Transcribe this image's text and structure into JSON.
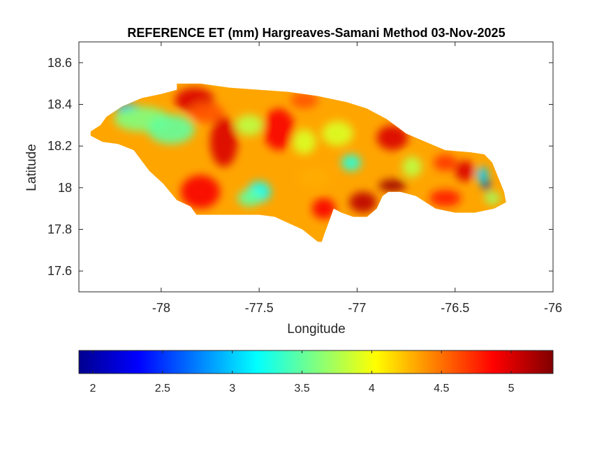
{
  "chart_data": {
    "type": "heatmap",
    "title": "REFERENCE ET (mm) Hargreaves-Samani Method  03-Nov-2025",
    "xlabel": "Longitude",
    "ylabel": "Latitude",
    "xlim": [
      -78.42,
      -76
    ],
    "ylim": [
      17.5,
      18.7
    ],
    "x_ticks": [
      {
        "value": -78,
        "label": "-78"
      },
      {
        "value": -77.5,
        "label": "-77.5"
      },
      {
        "value": -77,
        "label": "-77"
      },
      {
        "value": -76.5,
        "label": "-76.5"
      },
      {
        "value": -76,
        "label": "-76"
      }
    ],
    "y_ticks": [
      {
        "value": 17.6,
        "label": "17.6"
      },
      {
        "value": 17.8,
        "label": "17.8"
      },
      {
        "value": 18,
        "label": "18"
      },
      {
        "value": 18.2,
        "label": "18.2"
      },
      {
        "value": 18.4,
        "label": "18.4"
      },
      {
        "value": 18.6,
        "label": "18.6"
      }
    ],
    "colorbar": {
      "colormap": "jet",
      "range": [
        1.9,
        5.3
      ],
      "ticks": [
        {
          "value": 2,
          "label": "2"
        },
        {
          "value": 2.5,
          "label": "2.5"
        },
        {
          "value": 3,
          "label": "3"
        },
        {
          "value": 3.5,
          "label": "3.5"
        },
        {
          "value": 4,
          "label": "4"
        },
        {
          "value": 4.5,
          "label": "4.5"
        },
        {
          "value": 5,
          "label": "5"
        }
      ]
    },
    "region_outline": [
      [
        -78.36,
        18.27
      ],
      [
        -78.31,
        18.3
      ],
      [
        -78.28,
        18.34
      ],
      [
        -78.2,
        18.39
      ],
      [
        -78.1,
        18.43
      ],
      [
        -78.0,
        18.45
      ],
      [
        -77.92,
        18.47
      ],
      [
        -77.92,
        18.5
      ],
      [
        -77.8,
        18.5
      ],
      [
        -77.65,
        18.48
      ],
      [
        -77.5,
        18.47
      ],
      [
        -77.35,
        18.46
      ],
      [
        -77.2,
        18.44
      ],
      [
        -77.05,
        18.41
      ],
      [
        -76.95,
        18.38
      ],
      [
        -76.85,
        18.33
      ],
      [
        -76.75,
        18.26
      ],
      [
        -76.65,
        18.22
      ],
      [
        -76.55,
        18.18
      ],
      [
        -76.42,
        18.17
      ],
      [
        -76.35,
        18.16
      ],
      [
        -76.31,
        18.12
      ],
      [
        -76.28,
        18.05
      ],
      [
        -76.25,
        17.98
      ],
      [
        -76.24,
        17.93
      ],
      [
        -76.3,
        17.9
      ],
      [
        -76.4,
        17.88
      ],
      [
        -76.5,
        17.88
      ],
      [
        -76.6,
        17.9
      ],
      [
        -76.7,
        17.96
      ],
      [
        -76.78,
        17.98
      ],
      [
        -76.84,
        17.98
      ],
      [
        -76.87,
        17.96
      ],
      [
        -76.9,
        17.9
      ],
      [
        -76.95,
        17.86
      ],
      [
        -77.02,
        17.86
      ],
      [
        -77.08,
        17.88
      ],
      [
        -77.12,
        17.9
      ],
      [
        -77.15,
        17.82
      ],
      [
        -77.17,
        17.77
      ],
      [
        -77.18,
        17.74
      ],
      [
        -77.2,
        17.74
      ],
      [
        -77.24,
        17.77
      ],
      [
        -77.28,
        17.8
      ],
      [
        -77.35,
        17.83
      ],
      [
        -77.42,
        17.86
      ],
      [
        -77.5,
        17.87
      ],
      [
        -77.62,
        17.87
      ],
      [
        -77.75,
        17.87
      ],
      [
        -77.82,
        17.87
      ],
      [
        -77.85,
        17.91
      ],
      [
        -77.92,
        17.94
      ],
      [
        -77.99,
        18.02
      ],
      [
        -78.06,
        18.08
      ],
      [
        -78.1,
        18.13
      ],
      [
        -78.14,
        18.18
      ],
      [
        -78.22,
        18.21
      ],
      [
        -78.3,
        18.22
      ],
      [
        -78.36,
        18.25
      ]
    ],
    "surface_features": [
      {
        "lon": -78.17,
        "lat": 18.38,
        "value": 2.9,
        "rx": 0.06,
        "ry": 0.025
      },
      {
        "lon": -78.1,
        "lat": 18.33,
        "value": 3.6,
        "rx": 0.14,
        "ry": 0.06
      },
      {
        "lon": -77.95,
        "lat": 18.28,
        "value": 3.5,
        "rx": 0.12,
        "ry": 0.07
      },
      {
        "lon": -77.83,
        "lat": 18.42,
        "value": 5.0,
        "rx": 0.1,
        "ry": 0.06
      },
      {
        "lon": -77.77,
        "lat": 18.36,
        "value": 4.6,
        "rx": 0.09,
        "ry": 0.05
      },
      {
        "lon": -77.68,
        "lat": 18.22,
        "value": 5.0,
        "rx": 0.07,
        "ry": 0.12
      },
      {
        "lon": -77.8,
        "lat": 17.98,
        "value": 4.9,
        "rx": 0.1,
        "ry": 0.08
      },
      {
        "lon": -77.55,
        "lat": 18.3,
        "value": 3.8,
        "rx": 0.07,
        "ry": 0.05
      },
      {
        "lon": -77.5,
        "lat": 17.98,
        "value": 3.2,
        "rx": 0.06,
        "ry": 0.05
      },
      {
        "lon": -77.55,
        "lat": 17.95,
        "value": 3.5,
        "rx": 0.06,
        "ry": 0.04
      },
      {
        "lon": -77.4,
        "lat": 18.28,
        "value": 4.9,
        "rx": 0.08,
        "ry": 0.1
      },
      {
        "lon": -77.27,
        "lat": 18.42,
        "value": 4.6,
        "rx": 0.07,
        "ry": 0.04
      },
      {
        "lon": -77.27,
        "lat": 18.22,
        "value": 3.9,
        "rx": 0.06,
        "ry": 0.06
      },
      {
        "lon": -77.22,
        "lat": 18.05,
        "value": 4.3,
        "rx": 0.08,
        "ry": 0.05
      },
      {
        "lon": -77.17,
        "lat": 17.9,
        "value": 4.9,
        "rx": 0.06,
        "ry": 0.05
      },
      {
        "lon": -77.03,
        "lat": 18.12,
        "value": 3.3,
        "rx": 0.05,
        "ry": 0.04
      },
      {
        "lon": -77.1,
        "lat": 18.26,
        "value": 3.9,
        "rx": 0.08,
        "ry": 0.06
      },
      {
        "lon": -76.97,
        "lat": 17.93,
        "value": 5.1,
        "rx": 0.07,
        "ry": 0.05
      },
      {
        "lon": -76.82,
        "lat": 18.24,
        "value": 5.0,
        "rx": 0.08,
        "ry": 0.06
      },
      {
        "lon": -76.82,
        "lat": 18.01,
        "value": 5.2,
        "rx": 0.07,
        "ry": 0.03
      },
      {
        "lon": -76.72,
        "lat": 18.1,
        "value": 3.8,
        "rx": 0.05,
        "ry": 0.05
      },
      {
        "lon": -76.55,
        "lat": 18.12,
        "value": 4.7,
        "rx": 0.06,
        "ry": 0.04
      },
      {
        "lon": -76.45,
        "lat": 18.08,
        "value": 5.0,
        "rx": 0.05,
        "ry": 0.05
      },
      {
        "lon": -76.55,
        "lat": 17.95,
        "value": 4.8,
        "rx": 0.08,
        "ry": 0.04
      },
      {
        "lon": -76.36,
        "lat": 18.06,
        "value": 3.0,
        "rx": 0.03,
        "ry": 0.04
      },
      {
        "lon": -76.34,
        "lat": 18.01,
        "value": 2.0,
        "rx": 0.02,
        "ry": 0.025
      },
      {
        "lon": -76.31,
        "lat": 17.95,
        "value": 3.7,
        "rx": 0.04,
        "ry": 0.03
      }
    ]
  }
}
